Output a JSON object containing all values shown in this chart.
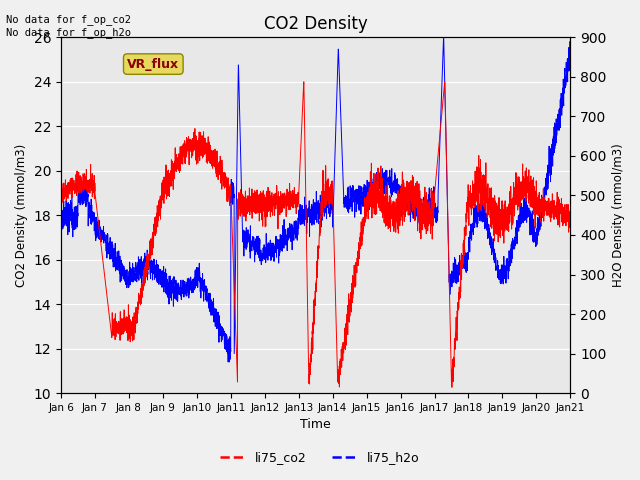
{
  "title": "CO2 Density",
  "xlabel": "Time",
  "ylabel_left": "CO2 Density (mmol/m3)",
  "ylabel_right": "H2O Density (mmol/m3)",
  "ylim_left": [
    10,
    26
  ],
  "ylim_right": [
    0,
    900
  ],
  "yticks_left": [
    10,
    12,
    14,
    16,
    18,
    20,
    22,
    24,
    26
  ],
  "yticks_right": [
    0,
    100,
    200,
    300,
    400,
    500,
    600,
    700,
    800,
    900
  ],
  "annotation_text": "No data for f_op_co2\nNo data for f_op_h2o",
  "vr_flux_label": "VR_flux",
  "legend_co2": "li75_co2",
  "legend_h2o": "li75_h2o",
  "color_co2": "#ff0000",
  "color_h2o": "#0000ff",
  "bg_color": "#e8e8e8",
  "fig_bg": "#f0f0f0",
  "num_points": 3600,
  "days_start": 6,
  "days_end": 21,
  "xtick_days": [
    6,
    7,
    8,
    9,
    10,
    11,
    12,
    13,
    14,
    15,
    16,
    17,
    18,
    19,
    20,
    21
  ]
}
